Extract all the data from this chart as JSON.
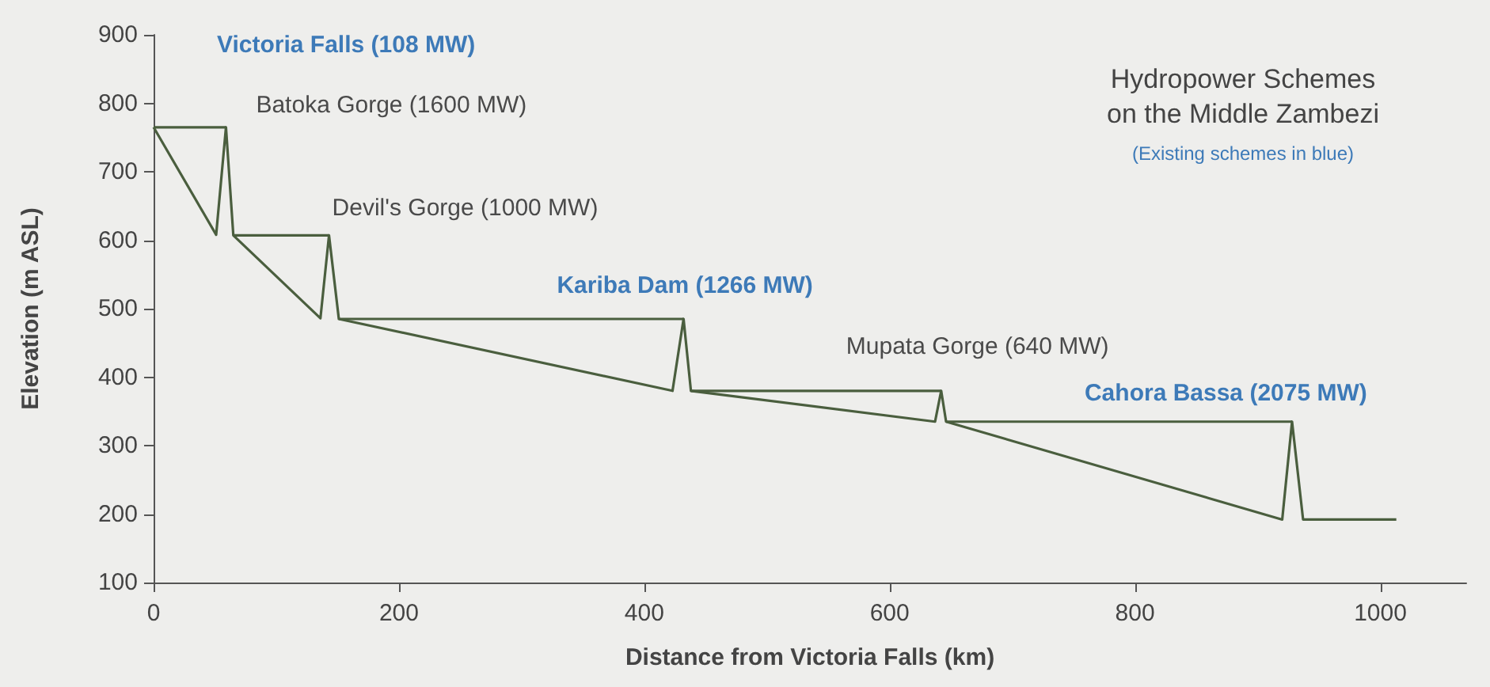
{
  "chart_data": {
    "type": "line",
    "title": "Hydropower Schemes\non the Middle Zambezi",
    "subtitle": "(Existing schemes in blue)",
    "xlabel": "Distance from Victoria Falls (km)",
    "ylabel": "Elevation (m ASL)",
    "xlim": [
      0,
      1070
    ],
    "xticks": [
      0,
      200,
      400,
      600,
      800,
      1000
    ],
    "ylim": [
      100,
      900
    ],
    "yticks": [
      100,
      200,
      300,
      400,
      500,
      600,
      700,
      800,
      900
    ],
    "grid": false,
    "marker": "none",
    "line_style": "solid",
    "series": [
      {
        "color": "#4a5e3e",
        "x": [
          0,
          51,
          59,
          65,
          136,
          143,
          151,
          423,
          432,
          438,
          637,
          642,
          646,
          920,
          928,
          937,
          1013
        ],
        "values": [
          765,
          608,
          765,
          607,
          486,
          607,
          485,
          380,
          485,
          380,
          335,
          380,
          335,
          192,
          335,
          192,
          192
        ]
      },
      {
        "color": "#4a5e3e",
        "x": [
          0,
          59
        ],
        "values": [
          765,
          765
        ]
      },
      {
        "color": "#4a5e3e",
        "x": [
          65,
          143
        ],
        "values": [
          607,
          607
        ]
      },
      {
        "color": "#4a5e3e",
        "x": [
          151,
          432
        ],
        "values": [
          485,
          485
        ]
      },
      {
        "color": "#4a5e3e",
        "x": [
          438,
          642
        ],
        "values": [
          380,
          380
        ]
      },
      {
        "color": "#4a5e3e",
        "x": [
          646,
          928
        ],
        "values": [
          335,
          335
        ]
      }
    ],
    "annotations": [
      "Victoria Falls (108 MW)",
      {
        "text": "Batoka Gorge (1600 MW)",
        "x": 59,
        "y": 765
      },
      {
        "text": "Devil's Gorge (1000 MW)",
        "x": 143,
        "y": 607
      },
      {
        "text": "Kariba Dam (1266 MW)",
        "x": 432,
        "y": 485
      },
      {
        "text": "Mupata Gorge (640 MW)",
        "x": 642,
        "y": 380
      },
      {
        "text": "Cahora Bassa (2075 MW)",
        "x": 928,
        "y": 335
      }
    ]
  }
}
